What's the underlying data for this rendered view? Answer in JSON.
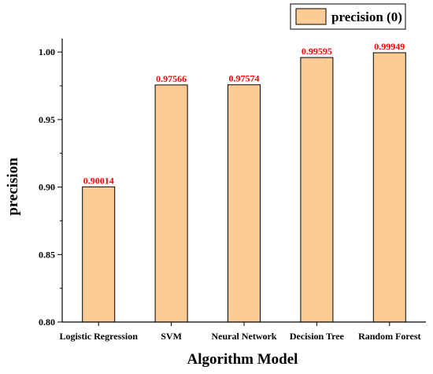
{
  "chart_data": {
    "type": "bar",
    "categories": [
      "Logistic Regression",
      "SVM",
      "Neural Network",
      "Decision Tree",
      "Random Forest"
    ],
    "series": [
      {
        "name": "precision (0)",
        "values": [
          0.90014,
          0.97566,
          0.97574,
          0.99595,
          0.99949
        ],
        "data_labels": [
          "0.90014",
          "0.97566",
          "0.97574",
          "0.99595",
          "0.99949"
        ]
      }
    ],
    "xlabel": "Algorithm Model",
    "ylabel": "precision",
    "ylim": [
      0.8,
      1.01
    ],
    "yticks": [
      0.8,
      0.85,
      0.9,
      0.95,
      1.0
    ],
    "ytick_labels": [
      "0.80",
      "0.85",
      "0.90",
      "0.95",
      "1.00"
    ],
    "grid": false,
    "legend": "top-right",
    "colors": {
      "bar_fill": "#fdcb94",
      "bar_stroke": "#000000",
      "data_label": "#ff0000",
      "axis": "#000000"
    }
  }
}
